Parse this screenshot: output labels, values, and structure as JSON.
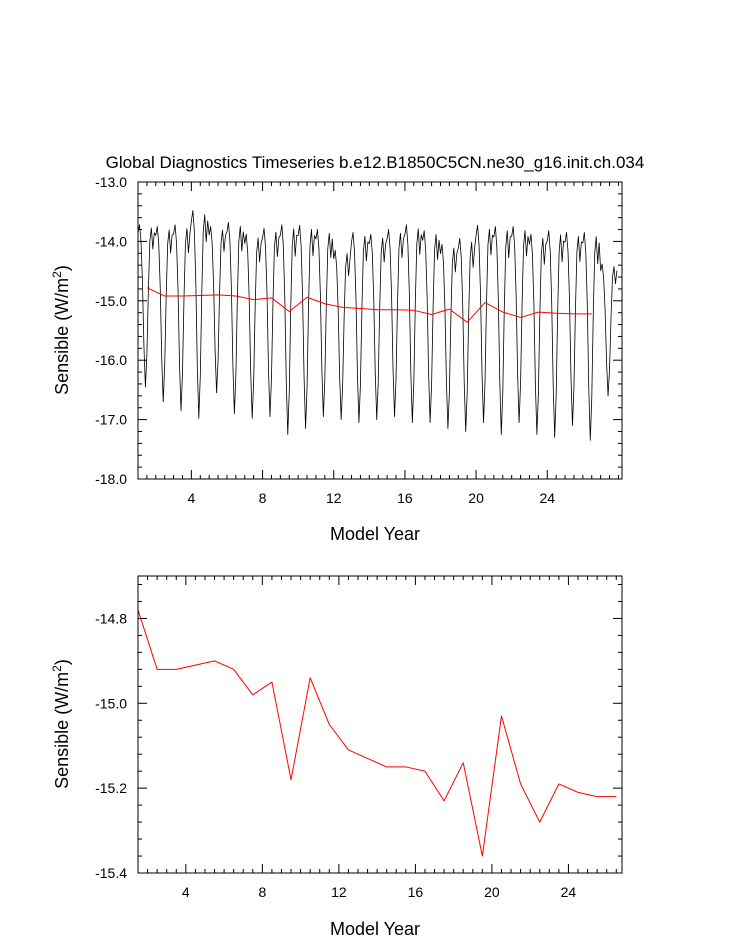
{
  "chart_data": [
    {
      "type": "line",
      "title": "Global Diagnostics Timeseries b.e12.B1850C5CN.ne30_g16.init.ch.034",
      "xlabel": "Model Year",
      "ylabel": "Sensible (W/m",
      "ylabel_sup": "2",
      "ylabel_close": ")",
      "xlim": [
        1,
        28.2
      ],
      "ylim": [
        -18.0,
        -13.0
      ],
      "x_ticks": [
        4,
        8,
        12,
        16,
        20,
        24
      ],
      "x_tick_labels": [
        "4",
        "8",
        "12",
        "16",
        "20",
        "24"
      ],
      "y_ticks": [
        -18,
        -17,
        -16,
        -15,
        -14,
        -13
      ],
      "y_tick_labels": [
        "-18.0",
        "-17.0",
        "-16.0",
        "-15.0",
        "-14.0",
        "-13.0"
      ],
      "grid": false,
      "series": [
        {
          "color": "#000000",
          "monthly_peaks": [
            -13.72,
            -13.75,
            -13.72,
            -13.48,
            -13.75,
            -13.68,
            -13.88,
            -13.78,
            -13.72,
            -13.73,
            -13.8,
            -14.15,
            -13.85,
            -13.88,
            -13.8,
            -13.72,
            -13.82,
            -14.05,
            -13.95,
            -13.73,
            -13.75,
            -13.75,
            -13.88,
            -13.82,
            -13.85,
            -13.85,
            -14.38
          ],
          "monthly_troughs": [
            -16.45,
            -16.7,
            -16.85,
            -16.98,
            -16.55,
            -16.9,
            -16.98,
            -16.95,
            -17.25,
            -17.15,
            -16.95,
            -17.0,
            -17.05,
            -17.0,
            -16.95,
            -17.05,
            -17.05,
            -17.15,
            -17.2,
            -17.05,
            -17.25,
            -17.05,
            -17.25,
            -17.3,
            -17.1,
            -17.35,
            -16.6
          ]
        },
        {
          "color": "#ff0000",
          "x": [
            1.5,
            2.5,
            3.5,
            4.5,
            5.5,
            6.5,
            7.5,
            8.5,
            9.5,
            10.5,
            11.5,
            12.5,
            13.5,
            14.5,
            15.5,
            16.5,
            17.5,
            18.5,
            19.5,
            20.5,
            21.5,
            22.5,
            23.5,
            24.5,
            25.5,
            26.5
          ],
          "y": [
            -14.78,
            -14.92,
            -14.92,
            -14.91,
            -14.9,
            -14.92,
            -14.98,
            -14.95,
            -15.18,
            -14.94,
            -15.05,
            -15.11,
            -15.13,
            -15.15,
            -15.15,
            -15.16,
            -15.23,
            -15.14,
            -15.36,
            -15.03,
            -15.19,
            -15.28,
            -15.19,
            -15.21,
            -15.22,
            -15.22
          ]
        }
      ]
    },
    {
      "type": "line",
      "title": "",
      "xlabel": "Model Year",
      "ylabel": "Sensible (W/m",
      "ylabel_sup": "2",
      "ylabel_close": ")",
      "xlim": [
        1.5,
        26.8
      ],
      "ylim": [
        -15.4,
        -14.7
      ],
      "x_ticks": [
        4,
        8,
        12,
        16,
        20,
        24
      ],
      "x_tick_labels": [
        "4",
        "8",
        "12",
        "16",
        "20",
        "24"
      ],
      "y_ticks": [
        -15.4,
        -15.2,
        -15.0,
        -14.8
      ],
      "y_tick_labels": [
        "-15.4",
        "-15.2",
        "-15.0",
        "-14.8"
      ],
      "grid": false,
      "series": [
        {
          "color": "#ff0000",
          "x": [
            1.5,
            2.5,
            3.5,
            4.5,
            5.5,
            6.5,
            7.5,
            8.5,
            9.5,
            10.5,
            11.5,
            12.5,
            13.5,
            14.5,
            15.5,
            16.5,
            17.5,
            18.5,
            19.5,
            20.5,
            21.5,
            22.5,
            23.5,
            24.5,
            25.5,
            26.5
          ],
          "y": [
            -14.78,
            -14.92,
            -14.92,
            -14.91,
            -14.9,
            -14.92,
            -14.98,
            -14.95,
            -15.18,
            -14.94,
            -15.05,
            -15.11,
            -15.13,
            -15.15,
            -15.15,
            -15.16,
            -15.23,
            -15.14,
            -15.36,
            -15.03,
            -15.19,
            -15.28,
            -15.19,
            -15.21,
            -15.22,
            -15.22
          ]
        }
      ]
    }
  ]
}
